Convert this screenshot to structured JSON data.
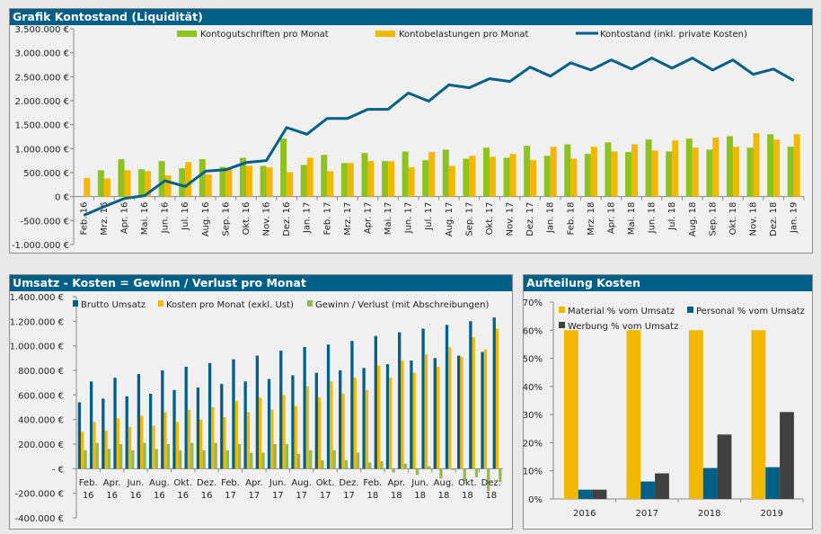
{
  "colors": {
    "credit": "#8dc21f",
    "debit": "#f2b800",
    "balance": "#005f87",
    "revenue": "#005f87",
    "costs": "#f2b800",
    "profit": "#93b85a",
    "material": "#f2b800",
    "personal": "#005f87",
    "werbung": "#404040"
  },
  "panels": {
    "kontostand_title": "Grafik Kontostand (Liquidität)",
    "gewinn_title": "Umsatz - Kosten = Gewinn / Verlust pro Monat",
    "kosten_title": "Aufteilung Kosten"
  },
  "chart_data": [
    {
      "type": "bar+line",
      "title": "Grafik Kontostand (Liquidität)",
      "ylim": [
        -1000000,
        3500000
      ],
      "y_ticks": [
        3500000,
        3000000,
        2500000,
        2000000,
        1500000,
        1000000,
        500000,
        0,
        -500000,
        -1000000
      ],
      "y_tick_labels": [
        "3.500.000 €",
        "3.000.000 €",
        "2.500.000 €",
        "2.000.000 €",
        "1.500.000 €",
        "1.000.000 €",
        "500.000 €",
        "0 €",
        "-500.000 €",
        "-1.000.000 €"
      ],
      "legend": "top",
      "categories": [
        "Feb. 16",
        "Mrz. 16",
        "Apr. 16",
        "Mai. 16",
        "Jun. 16",
        "Jul. 16",
        "Aug. 16",
        "Sep. 16",
        "Okt. 16",
        "Nov. 16",
        "Dez. 16",
        "Jan. 17",
        "Feb. 17",
        "Mrz. 17",
        "Apr. 17",
        "Mai. 17",
        "Jun. 17",
        "Jul. 17",
        "Aug. 17",
        "Sep. 17",
        "Okt. 17",
        "Nov. 17",
        "Dez. 17",
        "Jan. 18",
        "Feb. 18",
        "Mrz. 18",
        "Apr. 18",
        "Mai. 18",
        "Jun. 18",
        "Jul. 18",
        "Aug. 18",
        "Sep. 18",
        "Okt. 18",
        "Nov. 18",
        "Dez. 18",
        "Jan. 19"
      ],
      "series": [
        {
          "name": "Kontogutschriften pro Monat",
          "type": "bar",
          "values": [
            0,
            550000,
            780000,
            570000,
            740000,
            590000,
            780000,
            620000,
            810000,
            640000,
            1210000,
            660000,
            870000,
            700000,
            910000,
            740000,
            940000,
            760000,
            980000,
            790000,
            1020000,
            810000,
            1060000,
            850000,
            1090000,
            890000,
            1130000,
            930000,
            1190000,
            940000,
            1210000,
            980000,
            1260000,
            1020000,
            1300000,
            1040000
          ]
        },
        {
          "name": "Kontobelastungen pro Monat",
          "type": "bar",
          "values": [
            390000,
            380000,
            550000,
            530000,
            440000,
            720000,
            460000,
            570000,
            640000,
            610000,
            510000,
            810000,
            530000,
            700000,
            740000,
            740000,
            610000,
            930000,
            640000,
            850000,
            830000,
            890000,
            760000,
            1040000,
            790000,
            1040000,
            940000,
            1090000,
            960000,
            1170000,
            1020000,
            1230000,
            1040000,
            1320000,
            1190000,
            1300000
          ]
        },
        {
          "name": "Kontostand (inkl. private Kosten)",
          "type": "line",
          "values": [
            -390000,
            -210000,
            -40000,
            20000,
            330000,
            210000,
            530000,
            560000,
            710000,
            750000,
            1440000,
            1300000,
            1630000,
            1630000,
            1820000,
            1820000,
            2160000,
            1990000,
            2330000,
            2270000,
            2460000,
            2400000,
            2700000,
            2510000,
            2790000,
            2640000,
            2850000,
            2660000,
            2890000,
            2680000,
            2890000,
            2640000,
            2850000,
            2550000,
            2660000,
            2420000
          ]
        }
      ]
    },
    {
      "type": "bar",
      "title": "Umsatz - Kosten = Gewinn / Verlust pro Monat",
      "ylim": [
        -400000,
        1400000
      ],
      "y_ticks": [
        1400000,
        1200000,
        1000000,
        800000,
        600000,
        400000,
        200000,
        0,
        -200000,
        -400000
      ],
      "y_tick_labels": [
        "1.400.000 €",
        "1.200.000 €",
        "1.000.000 €",
        "800.000 €",
        "600.000 €",
        "400.000 €",
        "200.000 €",
        "-   €",
        "-200.000 €",
        "-400.000 €"
      ],
      "legend": "top",
      "categories": [
        "Feb. 16",
        "Mrz. 16",
        "Apr. 16",
        "Mai. 16",
        "Jun. 16",
        "Jul. 16",
        "Aug. 16",
        "Sep. 16",
        "Okt. 16",
        "Nov. 16",
        "Dez. 16",
        "Jan. 17",
        "Feb. 17",
        "Mrz. 17",
        "Apr. 17",
        "Mai. 17",
        "Jun. 17",
        "Jul. 17",
        "Aug. 17",
        "Sep. 17",
        "Okt. 17",
        "Nov. 17",
        "Dez. 17",
        "Jan. 18",
        "Feb. 18",
        "Mrz. 18",
        "Apr. 18",
        "Mai. 18",
        "Jun. 18",
        "Jul. 18",
        "Aug. 18",
        "Sep. 18",
        "Okt. 18",
        "Nov. 18",
        "Dez. 18",
        "Jan. 19"
      ],
      "x_tick_labels": [
        "Feb. 16",
        "Apr. 16",
        "Jun. 16",
        "Aug. 16",
        "Okt. 16",
        "Dez. 16",
        "Feb. 17",
        "Apr. 17",
        "Jun. 17",
        "Aug. 17",
        "Okt. 17",
        "Dez. 17",
        "Feb. 18",
        "Apr. 18",
        "Jun. 18",
        "Aug. 18",
        "Okt. 18",
        "Dez. 18"
      ],
      "series": [
        {
          "name": "Brutto Umsatz",
          "values": [
            540000,
            710000,
            570000,
            740000,
            590000,
            770000,
            610000,
            800000,
            640000,
            830000,
            660000,
            860000,
            690000,
            890000,
            710000,
            920000,
            730000,
            960000,
            760000,
            990000,
            780000,
            1010000,
            800000,
            1040000,
            820000,
            1080000,
            850000,
            1110000,
            880000,
            1140000,
            900000,
            1170000,
            920000,
            1200000,
            950000,
            1230000
          ]
        },
        {
          "name": "Kosten pro Monat (exkl. Ust)",
          "values": [
            300000,
            380000,
            310000,
            410000,
            340000,
            430000,
            350000,
            460000,
            380000,
            480000,
            400000,
            500000,
            420000,
            550000,
            460000,
            580000,
            480000,
            600000,
            510000,
            670000,
            580000,
            710000,
            610000,
            740000,
            640000,
            840000,
            740000,
            880000,
            780000,
            930000,
            830000,
            990000,
            910000,
            1070000,
            970000,
            1140000
          ]
        },
        {
          "name": "Gewinn / Verlust (mit Abschreibungen)",
          "values": [
            150000,
            210000,
            160000,
            200000,
            150000,
            210000,
            160000,
            200000,
            150000,
            210000,
            150000,
            210000,
            150000,
            200000,
            130000,
            130000,
            200000,
            200000,
            120000,
            150000,
            70000,
            150000,
            70000,
            130000,
            50000,
            60000,
            -30000,
            40000,
            -50000,
            20000,
            -80000,
            -10000,
            -100000,
            -70000,
            -180000,
            -110000
          ]
        }
      ]
    },
    {
      "type": "bar",
      "title": "Aufteilung Kosten",
      "ylim": [
        0,
        70
      ],
      "y_ticks": [
        70,
        60,
        50,
        40,
        30,
        20,
        10,
        0
      ],
      "y_tick_labels": [
        "70%",
        "60%",
        "50%",
        "40%",
        "30%",
        "20%",
        "10%",
        "0%"
      ],
      "legend": "top",
      "categories": [
        "2016",
        "2017",
        "2018",
        "2019"
      ],
      "series": [
        {
          "name": "Material % vom Umsatz",
          "values": [
            60,
            60,
            60,
            60
          ]
        },
        {
          "name": "Personal % vom Umsatz",
          "values": [
            3.3,
            6.2,
            11.0,
            11.3
          ]
        },
        {
          "name": "Werbung % vom Umsatz",
          "values": [
            3.3,
            9.1,
            22.9,
            30.9
          ]
        }
      ]
    }
  ]
}
